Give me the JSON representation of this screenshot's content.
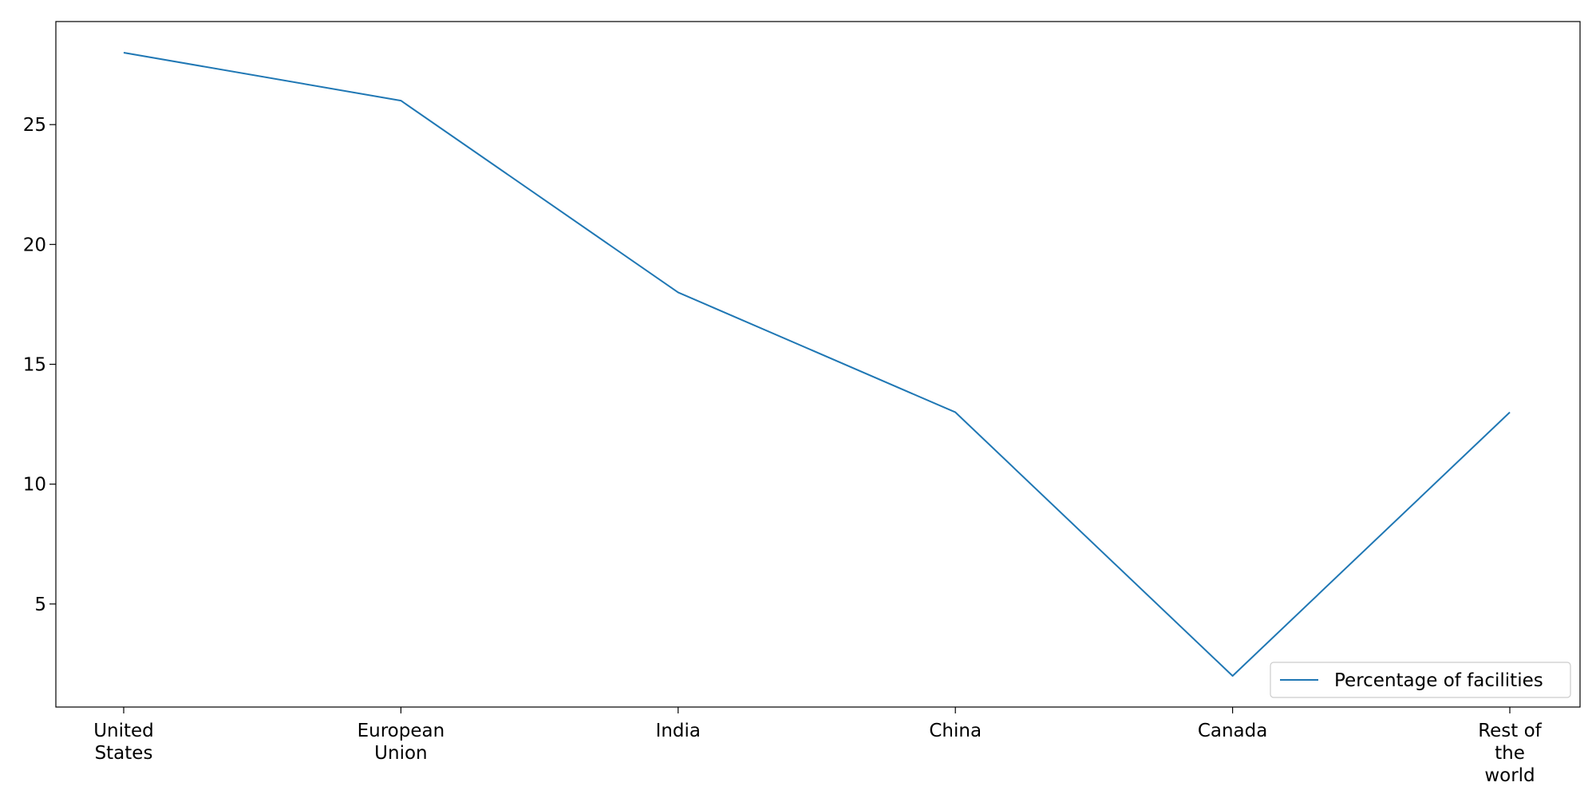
{
  "chart_data": {
    "type": "line",
    "title": "",
    "xlabel": "",
    "ylabel": "",
    "categories": [
      [
        "United",
        "States"
      ],
      [
        "European",
        "Union"
      ],
      [
        "India"
      ],
      [
        "China"
      ],
      [
        "Canada"
      ],
      [
        "Rest of",
        "the",
        "world"
      ]
    ],
    "series": [
      {
        "name": "Percentage of facilities",
        "color": "#1f77b4",
        "values": [
          28,
          26,
          18,
          13,
          2,
          13
        ]
      }
    ],
    "ylim": [
      0.7,
      29.3
    ],
    "yticks": [
      5,
      10,
      15,
      20,
      25
    ],
    "grid": false,
    "legend_position": "lower-right"
  }
}
